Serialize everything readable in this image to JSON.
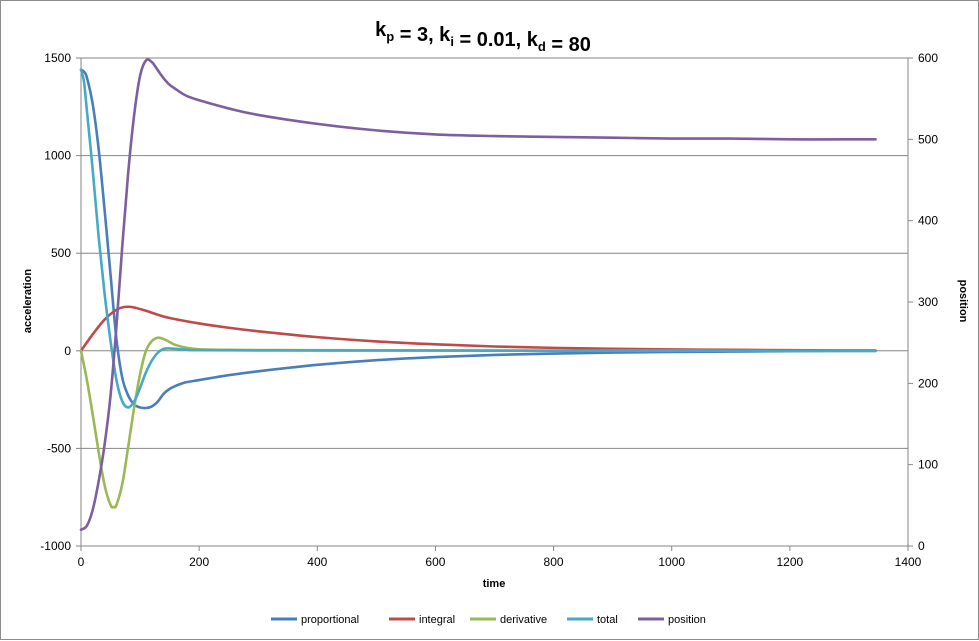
{
  "chart_data": {
    "type": "line",
    "title": {
      "parts": [
        {
          "text": "k",
          "sub": "p"
        },
        {
          "text": " = 3, k",
          "sub": "i"
        },
        {
          "text": " = 0.01, k",
          "sub": "d"
        },
        {
          "text": " = 80",
          "sub": ""
        }
      ]
    },
    "xlabel": "time",
    "ylabel": "acceleration",
    "y2label": "position",
    "xlim": [
      0,
      1400
    ],
    "ylim": [
      -1000,
      1500
    ],
    "y2lim": [
      0,
      600
    ],
    "xticks": [
      0,
      200,
      400,
      600,
      800,
      1000,
      1200,
      1400
    ],
    "yticks": [
      -1000,
      -500,
      0,
      500,
      1000,
      1500
    ],
    "y2ticks": [
      0,
      100,
      200,
      300,
      400,
      500,
      600
    ],
    "grid": "horizontal major",
    "legend_position": "bottom",
    "series": [
      {
        "name": "proportional",
        "axis": "left",
        "color": "#4a7ebb",
        "x": [
          0,
          5,
          10,
          20,
          30,
          40,
          50,
          60,
          70,
          80,
          90,
          100,
          110,
          120,
          130,
          140,
          150,
          160,
          170,
          180,
          200,
          250,
          300,
          400,
          500,
          600,
          700,
          800,
          900,
          1000,
          1100,
          1200,
          1300,
          1345
        ],
        "y": [
          1440,
          1430,
          1400,
          1260,
          1030,
          720,
          390,
          60,
          -140,
          -230,
          -275,
          -290,
          -293,
          -285,
          -260,
          -220,
          -195,
          -180,
          -168,
          -160,
          -150,
          -125,
          -105,
          -72,
          -48,
          -32,
          -21,
          -14,
          -9,
          -6,
          -4,
          -2,
          -1,
          -1
        ]
      },
      {
        "name": "integral",
        "axis": "left",
        "color": "#be4b48",
        "x": [
          0,
          20,
          40,
          60,
          75,
          90,
          110,
          130,
          150,
          200,
          250,
          300,
          400,
          500,
          600,
          700,
          800,
          900,
          1000,
          1100,
          1200,
          1300,
          1345
        ],
        "y": [
          0,
          85,
          160,
          210,
          225,
          222,
          205,
          185,
          168,
          140,
          118,
          100,
          70,
          48,
          33,
          22,
          15,
          10,
          7,
          5,
          3,
          2,
          2
        ]
      },
      {
        "name": "derivative",
        "axis": "left",
        "color": "#98b954",
        "x": [
          0,
          10,
          20,
          30,
          40,
          50,
          55,
          60,
          70,
          80,
          90,
          100,
          110,
          120,
          130,
          140,
          150,
          160,
          180,
          200,
          250,
          300,
          400,
          600,
          800,
          1000,
          1200,
          1345
        ],
        "y": [
          0,
          -150,
          -330,
          -520,
          -690,
          -790,
          -800,
          -790,
          -680,
          -490,
          -290,
          -120,
          0,
          50,
          67,
          60,
          45,
          30,
          15,
          8,
          5,
          4,
          3,
          2,
          1,
          1,
          0,
          0
        ]
      },
      {
        "name": "total",
        "axis": "left",
        "color": "#46aac5",
        "x": [
          0,
          5,
          10,
          20,
          30,
          40,
          50,
          60,
          70,
          80,
          90,
          100,
          110,
          120,
          130,
          140,
          150,
          160,
          180,
          200,
          300,
          400,
          600,
          800,
          1000,
          1200,
          1345
        ],
        "y": [
          1440,
          1380,
          1230,
          920,
          580,
          290,
          50,
          -150,
          -260,
          -290,
          -260,
          -190,
          -110,
          -50,
          -10,
          10,
          12,
          10,
          5,
          3,
          2,
          1,
          1,
          0,
          0,
          0,
          0
        ]
      },
      {
        "name": "position",
        "axis": "right",
        "color": "#7d5fa0",
        "x": [
          0,
          10,
          20,
          30,
          40,
          50,
          60,
          70,
          80,
          90,
          100,
          110,
          120,
          130,
          140,
          150,
          160,
          170,
          180,
          200,
          250,
          300,
          400,
          500,
          600,
          700,
          800,
          900,
          1000,
          1100,
          1200,
          1300,
          1345
        ],
        "y": [
          20,
          25,
          45,
          80,
          125,
          185,
          270,
          370,
          460,
          530,
          578,
          597,
          595,
          585,
          575,
          567,
          562,
          557,
          553,
          548,
          538,
          530,
          519,
          511,
          506,
          504,
          503,
          502,
          501,
          501,
          500,
          500,
          500
        ]
      }
    ]
  }
}
